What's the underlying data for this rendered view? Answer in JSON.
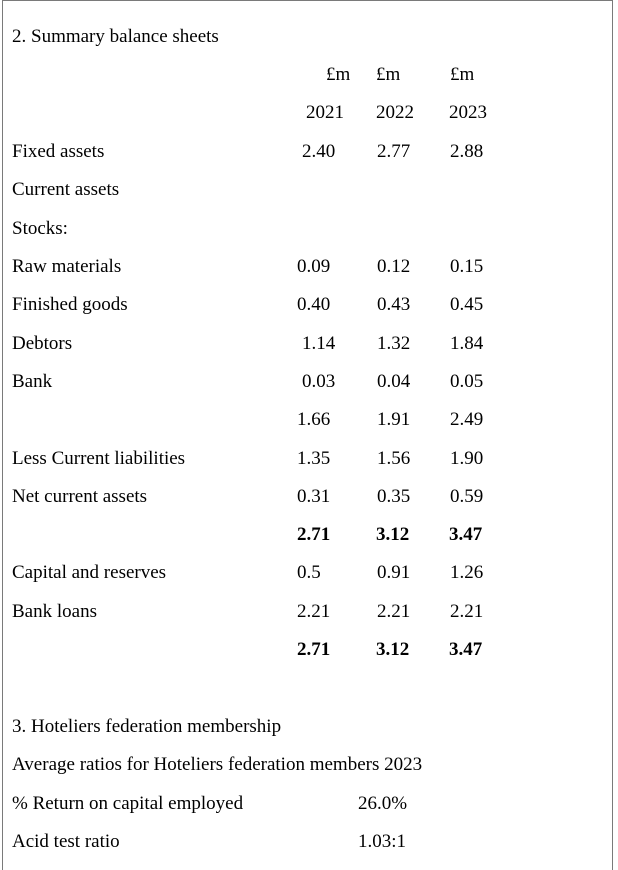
{
  "section2": {
    "title": "2. Summary balance sheets",
    "currency_headers": [
      "£m",
      "£m",
      "£m"
    ],
    "years": [
      "2021",
      "2022",
      "2023"
    ],
    "rows": [
      {
        "label": "Fixed assets",
        "values": [
          "2.40",
          "2.77",
          "2.88"
        ]
      },
      {
        "label": "Current assets",
        "values": [
          "",
          "",
          ""
        ]
      },
      {
        "label": "Stocks:",
        "values": [
          "",
          "",
          ""
        ]
      },
      {
        "label": "Raw materials",
        "values": [
          "0.09",
          "0.12",
          "0.15"
        ]
      },
      {
        "label": "Finished goods",
        "values": [
          "0.40",
          "0.43",
          "0.45"
        ]
      },
      {
        "label": "Debtors",
        "values": [
          "1.14",
          "1.32",
          "1.84"
        ]
      },
      {
        "label": "Bank",
        "values": [
          "0.03",
          "0.04",
          "0.05"
        ]
      },
      {
        "label": "",
        "values": [
          "1.66",
          "1.91",
          "2.49"
        ]
      },
      {
        "label": "Less Current liabilities",
        "values": [
          "1.35",
          "1.56",
          "1.90"
        ]
      },
      {
        "label": "Net current assets",
        "values": [
          "0.31",
          "0.35",
          "0.59"
        ]
      },
      {
        "label": "",
        "values": [
          "2.71",
          "3.12",
          "3.47"
        ]
      },
      {
        "label": "Capital and reserves",
        "values": [
          "0.5",
          "0.91",
          "1.26"
        ]
      },
      {
        "label": "Bank loans",
        "values": [
          "2.21",
          "2.21",
          "2.21"
        ]
      },
      {
        "label": "",
        "values": [
          "2.71",
          "3.12",
          "3.47"
        ]
      }
    ]
  },
  "section3": {
    "title": "3. Hoteliers federation membership",
    "subtitle": "Average ratios for Hoteliers federation members 2023",
    "ratios": [
      {
        "label": "% Return on capital employed",
        "value": "26.0%"
      },
      {
        "label": "Acid test ratio",
        "value": "1.03:1"
      }
    ]
  }
}
